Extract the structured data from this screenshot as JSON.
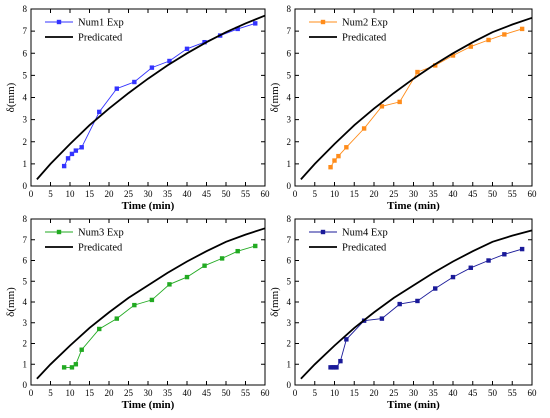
{
  "chart_data": [
    {
      "type": "line",
      "xlabel": "Time (min)",
      "ylabel": "δ(mm)",
      "xlim": [
        0,
        60
      ],
      "ylim": [
        0,
        8
      ],
      "xticks": [
        0,
        5,
        10,
        15,
        20,
        25,
        30,
        35,
        40,
        45,
        50,
        55,
        60
      ],
      "yticks": [
        0,
        1,
        2,
        3,
        4,
        5,
        6,
        7,
        8
      ],
      "legend": "top-left",
      "grid": false,
      "series": [
        {
          "name": "Num1 Exp",
          "color": "#3333ff",
          "marker": "square",
          "x": [
            8.5,
            9.5,
            10.5,
            11.5,
            13,
            17.5,
            22,
            26.5,
            31,
            35.5,
            40,
            44.5,
            48.5,
            53,
            57.5
          ],
          "y": [
            0.9,
            1.25,
            1.45,
            1.6,
            1.75,
            3.35,
            4.4,
            4.7,
            5.35,
            5.65,
            6.2,
            6.5,
            6.8,
            7.1,
            7.35
          ]
        },
        {
          "name": "Predicated",
          "color": "#000000",
          "marker": "none",
          "x": [
            1.5,
            5,
            10,
            15,
            20,
            25,
            30,
            35,
            40,
            45,
            50,
            55,
            60
          ],
          "y": [
            0.3,
            1.0,
            1.9,
            2.75,
            3.5,
            4.2,
            4.85,
            5.45,
            6.0,
            6.5,
            6.95,
            7.35,
            7.7
          ]
        }
      ]
    },
    {
      "type": "line",
      "xlabel": "Time (min)",
      "ylabel": "δ(mm)",
      "xlim": [
        0,
        60
      ],
      "ylim": [
        0,
        8
      ],
      "xticks": [
        0,
        5,
        10,
        15,
        20,
        25,
        30,
        35,
        40,
        45,
        50,
        55,
        60
      ],
      "yticks": [
        0,
        1,
        2,
        3,
        4,
        5,
        6,
        7,
        8
      ],
      "legend": "top-left",
      "grid": false,
      "series": [
        {
          "name": "Num2 Exp",
          "color": "#ff8c1a",
          "marker": "square",
          "x": [
            9,
            10,
            11,
            13,
            17.5,
            22,
            26.5,
            31,
            35.5,
            40,
            44.5,
            49,
            53,
            57.5
          ],
          "y": [
            0.85,
            1.15,
            1.35,
            1.75,
            2.6,
            3.6,
            3.8,
            5.15,
            5.45,
            5.9,
            6.3,
            6.6,
            6.85,
            7.1
          ]
        },
        {
          "name": "Predicated",
          "color": "#000000",
          "marker": "none",
          "x": [
            1.5,
            5,
            10,
            15,
            20,
            25,
            30,
            35,
            40,
            45,
            50,
            55,
            60
          ],
          "y": [
            0.3,
            1.0,
            1.9,
            2.75,
            3.5,
            4.2,
            4.85,
            5.45,
            6.0,
            6.5,
            6.95,
            7.3,
            7.6
          ]
        }
      ]
    },
    {
      "type": "line",
      "xlabel": "Time (min)",
      "ylabel": "δ(mm)",
      "xlim": [
        0,
        60
      ],
      "ylim": [
        0,
        8
      ],
      "xticks": [
        0,
        5,
        10,
        15,
        20,
        25,
        30,
        35,
        40,
        45,
        50,
        55,
        60
      ],
      "yticks": [
        0,
        1,
        2,
        3,
        4,
        5,
        6,
        7,
        8
      ],
      "legend": "top-left",
      "grid": false,
      "series": [
        {
          "name": "Num3 Exp",
          "color": "#22aa22",
          "marker": "square",
          "x": [
            8.5,
            10.5,
            11.5,
            13,
            17.5,
            22,
            26.5,
            31,
            35.5,
            40,
            44.5,
            49,
            53,
            57.5
          ],
          "y": [
            0.85,
            0.85,
            1.0,
            1.7,
            2.7,
            3.2,
            3.85,
            4.1,
            4.85,
            5.2,
            5.75,
            6.1,
            6.45,
            6.7
          ]
        },
        {
          "name": "Predicated",
          "color": "#000000",
          "marker": "none",
          "x": [
            1.5,
            5,
            10,
            15,
            20,
            25,
            30,
            35,
            40,
            45,
            50,
            55,
            60
          ],
          "y": [
            0.3,
            1.0,
            1.9,
            2.75,
            3.5,
            4.2,
            4.8,
            5.4,
            5.95,
            6.45,
            6.9,
            7.25,
            7.55
          ]
        }
      ]
    },
    {
      "type": "line",
      "xlabel": "Time (min)",
      "ylabel": "δ(mm)",
      "xlim": [
        0,
        60
      ],
      "ylim": [
        0,
        8
      ],
      "xticks": [
        0,
        5,
        10,
        15,
        20,
        25,
        30,
        35,
        40,
        45,
        50,
        55,
        60
      ],
      "yticks": [
        0,
        1,
        2,
        3,
        4,
        5,
        6,
        7,
        8
      ],
      "legend": "top-left",
      "grid": false,
      "series": [
        {
          "name": "Num4 Exp",
          "color": "#1a1a99",
          "marker": "square",
          "x": [
            9,
            9.5,
            10,
            10.5,
            11.5,
            13,
            17.5,
            22,
            26.5,
            31,
            35.5,
            40,
            44.5,
            49,
            53,
            57.5
          ],
          "y": [
            0.85,
            0.85,
            0.85,
            0.85,
            1.15,
            2.2,
            3.1,
            3.2,
            3.9,
            4.05,
            4.65,
            5.2,
            5.65,
            6.0,
            6.3,
            6.55
          ]
        },
        {
          "name": "Predicated",
          "color": "#000000",
          "marker": "none",
          "x": [
            1.5,
            5,
            10,
            15,
            20,
            25,
            30,
            35,
            40,
            45,
            50,
            55,
            60
          ],
          "y": [
            0.3,
            1.0,
            1.9,
            2.75,
            3.5,
            4.2,
            4.8,
            5.4,
            5.95,
            6.45,
            6.9,
            7.2,
            7.45
          ]
        }
      ]
    }
  ]
}
